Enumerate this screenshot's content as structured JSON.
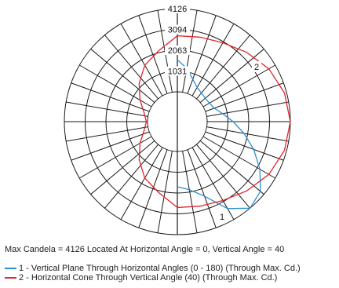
{
  "chart_data": {
    "type": "polar",
    "radial_ticks": [
      1031,
      2063,
      3094,
      4126
    ],
    "radial_max": 4126,
    "spoke_step_deg": 10,
    "grid": true,
    "curve_labels": [
      "1",
      "2"
    ],
    "series": [
      {
        "name": "1 - Vertical Plane Through Horizontal Angles (0 - 180) (Through Max. Cd.)",
        "key": "1",
        "color": "#2b8fd0",
        "angle_reference": "0 = nadir (down), increasing clockwise",
        "points": [
          [
            0,
            1750
          ],
          [
            10,
            1950
          ],
          [
            20,
            2450
          ],
          [
            30,
            3500
          ],
          [
            40,
            4126
          ],
          [
            50,
            3900
          ],
          [
            60,
            3250
          ],
          [
            70,
            2550
          ],
          [
            80,
            1880
          ],
          [
            90,
            1290
          ],
          [
            100,
            800
          ],
          [
            110,
            470
          ],
          [
            120,
            360
          ],
          [
            130,
            330
          ],
          [
            140,
            380
          ],
          [
            150,
            480
          ],
          [
            160,
            760
          ],
          [
            170,
            1200
          ],
          [
            180,
            1590
          ]
        ]
      },
      {
        "name": "2 - Horizontal Cone Through Vertical Angle (40) (Through Max. Cd.)",
        "key": "2",
        "color": "#e0262b",
        "angle_reference": "0 = right (east), increasing counter-clockwise",
        "points": [
          [
            0,
            4126
          ],
          [
            15,
            4020
          ],
          [
            30,
            3760
          ],
          [
            45,
            3380
          ],
          [
            60,
            3040
          ],
          [
            75,
            2860
          ],
          [
            90,
            2780
          ],
          [
            105,
            2150
          ],
          [
            120,
            1750
          ],
          [
            135,
            1200
          ],
          [
            150,
            660
          ],
          [
            165,
            230
          ],
          [
            180,
            60
          ],
          [
            195,
            230
          ],
          [
            210,
            660
          ],
          [
            225,
            1200
          ],
          [
            240,
            1750
          ],
          [
            255,
            2150
          ],
          [
            270,
            2780
          ],
          [
            285,
            2860
          ],
          [
            300,
            3040
          ],
          [
            315,
            3380
          ],
          [
            330,
            3760
          ],
          [
            345,
            4020
          ]
        ]
      }
    ]
  },
  "info_text": "Max Candela = 4126 Located At Horizontal Angle = 0, Vertical Angle = 40",
  "legend": [
    {
      "text": "1 - Vertical Plane Through Horizontal Angles (0 - 180) (Through Max. Cd.)",
      "color": "#2b8fd0"
    },
    {
      "text": "2 - Horizontal Cone Through Vertical Angle (40) (Through Max. Cd.)",
      "color": "#e0262b"
    }
  ]
}
